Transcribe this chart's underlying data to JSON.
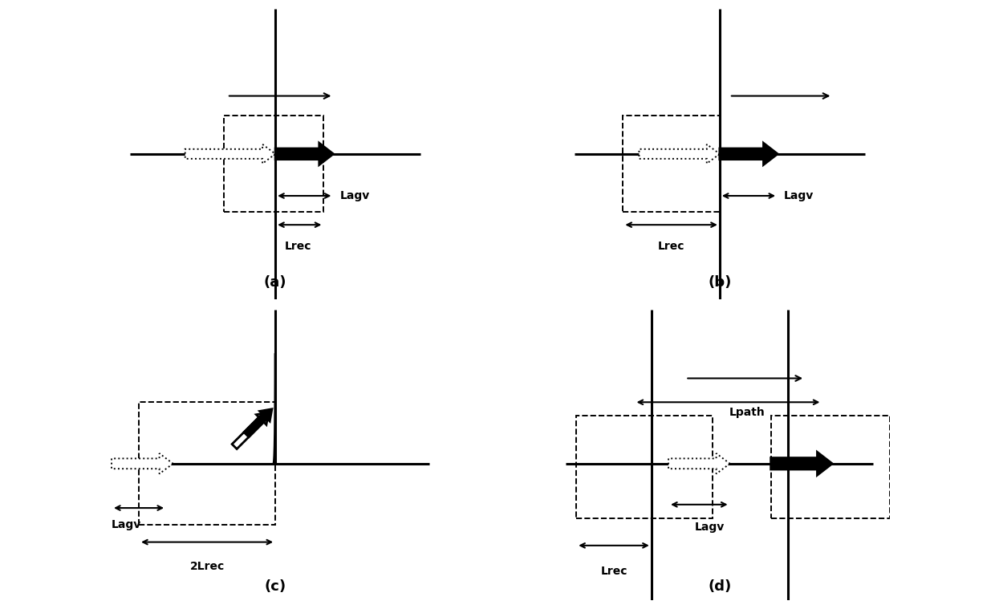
{
  "bg_color": "#ffffff",
  "label_a": "(a)",
  "label_b": "(b)",
  "label_c": "(c)",
  "label_d": "(d)",
  "text_lagv": "Lagv",
  "text_lrec": "Lrec",
  "text_2lrec": "2Lrec",
  "text_lpath": "Lpath",
  "font_size_label": 13,
  "font_size_dim": 10,
  "road_lw": 2.2,
  "dash_lw": 1.4,
  "dim_lw": 1.5,
  "block_arrow_lw": 2.0
}
